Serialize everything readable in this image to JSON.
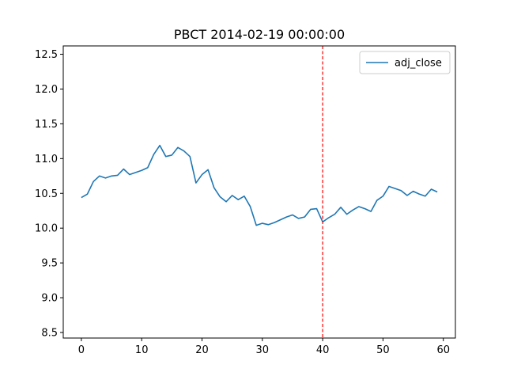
{
  "chart_data": {
    "type": "line",
    "title": "PBCT 2014-02-19 00:00:00",
    "xlabel": "",
    "ylabel": "",
    "xlim": [
      -3,
      62
    ],
    "ylim": [
      8.42,
      12.62
    ],
    "x_ticks": [
      0,
      10,
      20,
      30,
      40,
      50,
      60
    ],
    "y_ticks": [
      8.5,
      9.0,
      9.5,
      10.0,
      10.5,
      11.0,
      11.5,
      12.0,
      12.5
    ],
    "x_tick_labels": [
      "0",
      "10",
      "20",
      "30",
      "40",
      "50",
      "60"
    ],
    "y_tick_labels": [
      "8.5",
      "9.0",
      "9.5",
      "10.0",
      "10.5",
      "11.0",
      "11.5",
      "12.0",
      "12.5"
    ],
    "grid": false,
    "legend_position": "upper-right",
    "series": [
      {
        "name": "adj_close",
        "color": "#1f77b4",
        "x": [
          0,
          1,
          2,
          3,
          4,
          5,
          6,
          7,
          8,
          9,
          10,
          11,
          12,
          13,
          14,
          15,
          16,
          17,
          18,
          19,
          20,
          21,
          22,
          23,
          24,
          25,
          26,
          27,
          28,
          29,
          30,
          31,
          32,
          33,
          34,
          35,
          36,
          37,
          38,
          39,
          40,
          41,
          42,
          43,
          44,
          45,
          46,
          47,
          48,
          49,
          50,
          51,
          52,
          53,
          54,
          55,
          56,
          57,
          58,
          59
        ],
        "values": [
          10.44,
          10.49,
          10.67,
          10.75,
          10.72,
          10.75,
          10.76,
          10.85,
          10.77,
          10.8,
          10.83,
          10.87,
          11.06,
          11.19,
          11.03,
          11.05,
          11.16,
          11.11,
          11.03,
          10.65,
          10.77,
          10.84,
          10.58,
          10.45,
          10.38,
          10.47,
          10.41,
          10.46,
          10.31,
          10.04,
          10.07,
          10.05,
          10.08,
          10.12,
          10.16,
          10.19,
          10.14,
          10.16,
          10.27,
          10.28,
          10.09,
          10.15,
          10.2,
          10.3,
          10.2,
          10.26,
          10.31,
          10.28,
          10.24,
          10.4,
          10.46,
          10.6,
          10.57,
          10.54,
          10.47,
          10.53,
          10.49,
          10.46,
          10.56,
          10.52
        ]
      }
    ],
    "vline": {
      "x": 40,
      "color": "#ff0000",
      "style": "dashed"
    }
  }
}
